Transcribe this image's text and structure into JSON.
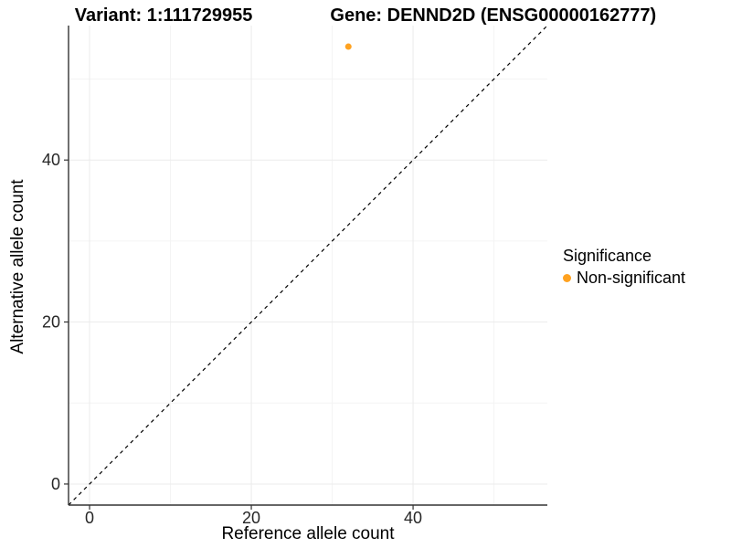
{
  "titles": {
    "variant": "Variant: 1:111729955",
    "gene": "Gene: DENND2D (ENSG00000162777)"
  },
  "chart_data": {
    "type": "scatter",
    "title_left": "Variant: 1:111729955",
    "title_right": "Gene: DENND2D (ENSG00000162777)",
    "xlabel": "Reference allele count",
    "ylabel": "Alternative allele count",
    "xlim": [
      -2.6,
      56.6
    ],
    "ylim": [
      -2.6,
      56.6
    ],
    "x_ticks": [
      0,
      20,
      40
    ],
    "y_ticks": [
      0,
      20,
      40
    ],
    "x_minor": [
      10,
      30,
      50
    ],
    "y_minor": [
      10,
      30,
      50
    ],
    "grid": "on",
    "legend_position": "right",
    "points": [
      {
        "x": 32,
        "y": 54,
        "series": "Non-significant",
        "color": "#FFA220",
        "radius": 3.5
      }
    ],
    "reference_line": {
      "type": "identity",
      "equation": "y = x",
      "style": "dashed",
      "color": "#000000"
    },
    "legend": {
      "title": "Significance",
      "items": [
        {
          "label": "Non-significant",
          "color": "#FFA220"
        }
      ]
    },
    "colors": {
      "background": "#FFFFFF",
      "major_grid": "#EBEBEB",
      "minor_grid": "#F4F4F4",
      "axis_line": "#333333",
      "tick_mark": "#333333",
      "tick_label": "#262626"
    }
  }
}
